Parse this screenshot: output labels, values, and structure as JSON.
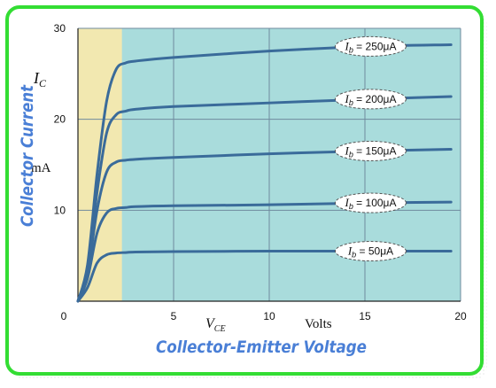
{
  "chart_data": {
    "type": "line",
    "ylabel": "Collector Current",
    "xlabel": "Collector-Emitter Voltage",
    "y_symbol": "I",
    "y_symbol_sub": "C",
    "y_unit": "mA",
    "x_symbol": "V",
    "x_symbol_sub": "CE",
    "x_unit": "Volts",
    "xlim": [
      0,
      20
    ],
    "ylim": [
      0,
      30
    ],
    "x_ticks": [
      0,
      5,
      10,
      15,
      20
    ],
    "y_ticks": [
      10,
      20,
      30
    ],
    "grid": true,
    "saturation_region_end": 2.3,
    "series": [
      {
        "label": "250μA",
        "label_base": "I",
        "label_sub": "b",
        "label_sep": " = ",
        "x": [
          0,
          0.5,
          1.0,
          1.5,
          2.0,
          2.5,
          3.0,
          5,
          10,
          15,
          19.5
        ],
        "y": [
          0,
          4,
          14,
          22,
          25.5,
          26.2,
          26.4,
          26.8,
          27.5,
          28.0,
          28.2
        ]
      },
      {
        "label": "200μA",
        "label_base": "I",
        "label_sub": "b",
        "label_sep": " = ",
        "x": [
          0,
          0.5,
          1.0,
          1.5,
          2.0,
          2.5,
          3.0,
          5,
          10,
          15,
          19.5
        ],
        "y": [
          0,
          3.5,
          12,
          18.5,
          20.5,
          20.9,
          21.1,
          21.4,
          21.8,
          22.2,
          22.5
        ]
      },
      {
        "label": "150μA",
        "label_base": "I",
        "label_sub": "b",
        "label_sep": " = ",
        "x": [
          0,
          0.5,
          1.0,
          1.5,
          2.0,
          2.5,
          3.0,
          5,
          10,
          15,
          19.5
        ],
        "y": [
          0,
          3,
          10,
          14.2,
          15.3,
          15.5,
          15.6,
          15.8,
          16.2,
          16.5,
          16.7
        ]
      },
      {
        "label": "100μA",
        "label_base": "I",
        "label_sub": "b",
        "label_sep": " = ",
        "x": [
          0,
          0.5,
          1.0,
          1.5,
          2.0,
          2.5,
          3.0,
          5,
          10,
          15,
          19.5
        ],
        "y": [
          0,
          2.5,
          7.5,
          9.7,
          10.2,
          10.3,
          10.4,
          10.5,
          10.6,
          10.8,
          10.9
        ]
      },
      {
        "label": "50μA",
        "label_base": "I",
        "label_sub": "b",
        "label_sep": " = ",
        "x": [
          0,
          0.5,
          1.0,
          1.5,
          2.0,
          2.5,
          3.0,
          5,
          10,
          15,
          19.5
        ],
        "y": [
          0,
          1.5,
          4.2,
          5.1,
          5.3,
          5.35,
          5.4,
          5.45,
          5.5,
          5.5,
          5.5
        ]
      }
    ],
    "label_positions_x": [
      15.3,
      15.3,
      15.3,
      15.3,
      15.3
    ]
  },
  "colors": {
    "border": "#33dd33",
    "plot_bg": "#a9dcdc",
    "saturation_bg": "#f2e8b0",
    "curve": "#3a6b9a",
    "grid": "#6f8a9e",
    "title": "#4a7fd6"
  }
}
